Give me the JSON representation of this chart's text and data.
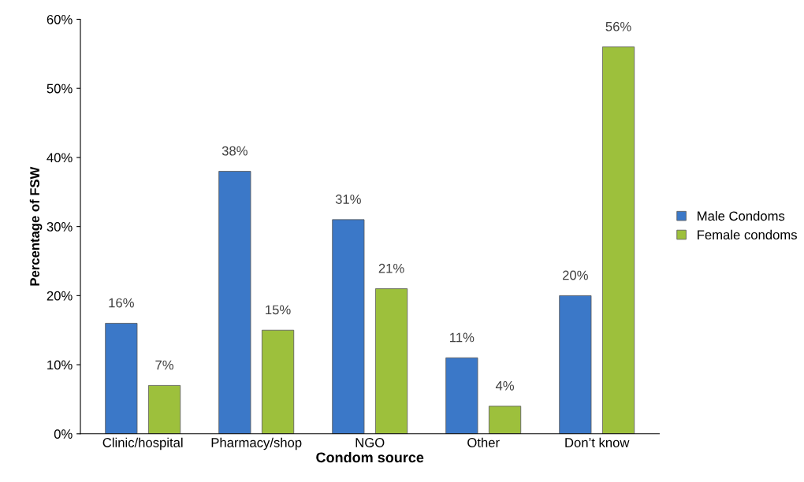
{
  "chart_data": {
    "type": "bar",
    "xlabel": "Condom source",
    "ylabel": "Percentage of FSW",
    "categories": [
      "Clinic/hospital",
      "Pharmacy/shop",
      "NGO",
      "Other",
      "Don’t know"
    ],
    "series": [
      {
        "name": "Male Condoms",
        "color": "#3b78c8",
        "values": [
          16,
          38,
          31,
          11,
          20
        ],
        "value_labels": [
          "16%",
          "38%",
          "31%",
          "11%",
          "20%"
        ]
      },
      {
        "name": "Female condoms",
        "color": "#9dc03c",
        "values": [
          7,
          15,
          21,
          4,
          56
        ],
        "value_labels": [
          "7%",
          "15%",
          "21%",
          "4%",
          "56%"
        ]
      }
    ],
    "ylim": [
      0,
      60
    ],
    "yticks": [
      {
        "value": 0,
        "label": "0%"
      },
      {
        "value": 10,
        "label": "10%"
      },
      {
        "value": 20,
        "label": "20%"
      },
      {
        "value": 30,
        "label": "30%"
      },
      {
        "value": 40,
        "label": "40%"
      },
      {
        "value": 50,
        "label": "50%"
      },
      {
        "value": 60,
        "label": "60%"
      }
    ],
    "grid": false,
    "legend": "right"
  }
}
